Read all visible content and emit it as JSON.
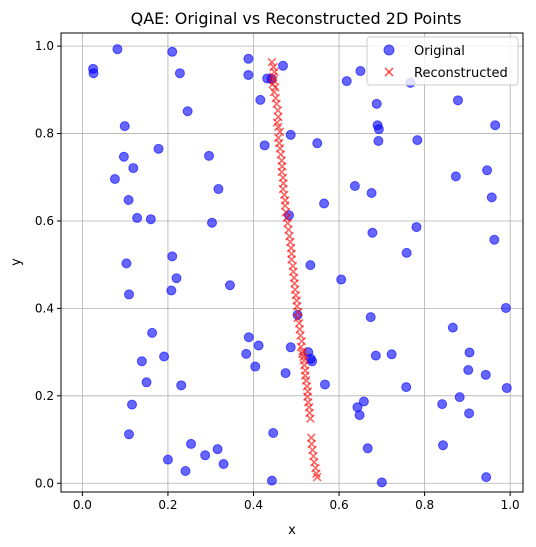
{
  "chart_data": {
    "type": "scatter",
    "title": "QAE: Original vs Reconstructed 2D Points",
    "xlabel": "x",
    "ylabel": "y",
    "xlim": [
      -0.05,
      1.03
    ],
    "ylim": [
      -0.02,
      1.03
    ],
    "x_ticks": [
      0.0,
      0.2,
      0.4,
      0.6,
      0.8,
      1.0
    ],
    "y_ticks": [
      0.0,
      0.2,
      0.4,
      0.6,
      0.8,
      1.0
    ],
    "x_tick_labels": [
      "0.0",
      "0.2",
      "0.4",
      "0.6",
      "0.8",
      "1.0"
    ],
    "y_tick_labels": [
      "0.0",
      "0.2",
      "0.4",
      "0.6",
      "0.8",
      "1.0"
    ],
    "grid": true,
    "legend": {
      "placement": "top-right"
    },
    "series": [
      {
        "name": "Original",
        "marker": "circle",
        "color": "#0000ff",
        "points": [
          [
            0.025,
            0.948
          ],
          [
            0.026,
            0.938
          ],
          [
            0.082,
            0.993
          ],
          [
            0.21,
            0.987
          ],
          [
            0.228,
            0.938
          ],
          [
            0.388,
            0.971
          ],
          [
            0.388,
            0.934
          ],
          [
            0.432,
            0.926
          ],
          [
            0.469,
            0.955
          ],
          [
            0.442,
            0.925
          ],
          [
            0.618,
            0.92
          ],
          [
            0.65,
            0.943
          ],
          [
            0.767,
            0.916
          ],
          [
            0.246,
            0.851
          ],
          [
            0.416,
            0.877
          ],
          [
            0.688,
            0.868
          ],
          [
            0.878,
            0.876
          ],
          [
            0.099,
            0.817
          ],
          [
            0.69,
            0.819
          ],
          [
            0.965,
            0.819
          ],
          [
            0.693,
            0.81
          ],
          [
            0.487,
            0.797
          ],
          [
            0.783,
            0.785
          ],
          [
            0.692,
            0.783
          ],
          [
            0.426,
            0.773
          ],
          [
            0.549,
            0.778
          ],
          [
            0.178,
            0.765
          ],
          [
            0.097,
            0.747
          ],
          [
            0.296,
            0.749
          ],
          [
            0.119,
            0.721
          ],
          [
            0.946,
            0.716
          ],
          [
            0.076,
            0.696
          ],
          [
            0.873,
            0.702
          ],
          [
            0.318,
            0.673
          ],
          [
            0.637,
            0.68
          ],
          [
            0.676,
            0.664
          ],
          [
            0.108,
            0.648
          ],
          [
            0.957,
            0.654
          ],
          [
            0.565,
            0.64
          ],
          [
            0.483,
            0.613
          ],
          [
            0.128,
            0.607
          ],
          [
            0.16,
            0.604
          ],
          [
            0.303,
            0.596
          ],
          [
            0.781,
            0.586
          ],
          [
            0.678,
            0.573
          ],
          [
            0.963,
            0.557
          ],
          [
            0.758,
            0.527
          ],
          [
            0.21,
            0.519
          ],
          [
            0.103,
            0.503
          ],
          [
            0.533,
            0.499
          ],
          [
            0.22,
            0.469
          ],
          [
            0.605,
            0.466
          ],
          [
            0.345,
            0.453
          ],
          [
            0.208,
            0.441
          ],
          [
            0.109,
            0.432
          ],
          [
            0.99,
            0.401
          ],
          [
            0.503,
            0.385
          ],
          [
            0.674,
            0.38
          ],
          [
            0.866,
            0.356
          ],
          [
            0.163,
            0.344
          ],
          [
            0.389,
            0.334
          ],
          [
            0.412,
            0.315
          ],
          [
            0.487,
            0.311
          ],
          [
            0.528,
            0.3
          ],
          [
            0.383,
            0.296
          ],
          [
            0.905,
            0.299
          ],
          [
            0.723,
            0.295
          ],
          [
            0.191,
            0.29
          ],
          [
            0.686,
            0.292
          ],
          [
            0.139,
            0.279
          ],
          [
            0.534,
            0.285
          ],
          [
            0.537,
            0.279
          ],
          [
            0.404,
            0.267
          ],
          [
            0.902,
            0.259
          ],
          [
            0.475,
            0.252
          ],
          [
            0.943,
            0.248
          ],
          [
            0.15,
            0.231
          ],
          [
            0.567,
            0.226
          ],
          [
            0.231,
            0.224
          ],
          [
            0.757,
            0.22
          ],
          [
            0.992,
            0.218
          ],
          [
            0.882,
            0.197
          ],
          [
            0.658,
            0.187
          ],
          [
            0.116,
            0.18
          ],
          [
            0.841,
            0.181
          ],
          [
            0.643,
            0.174
          ],
          [
            0.904,
            0.16
          ],
          [
            0.648,
            0.156
          ],
          [
            0.446,
            0.115
          ],
          [
            0.109,
            0.112
          ],
          [
            0.254,
            0.09
          ],
          [
            0.843,
            0.087
          ],
          [
            0.667,
            0.08
          ],
          [
            0.316,
            0.078
          ],
          [
            0.287,
            0.064
          ],
          [
            0.2,
            0.054
          ],
          [
            0.33,
            0.044
          ],
          [
            0.241,
            0.028
          ],
          [
            0.944,
            0.014
          ],
          [
            0.443,
            0.006
          ],
          [
            0.7,
            0.002
          ]
        ]
      },
      {
        "name": "Reconstructed",
        "marker": "x",
        "color": "#ff0000",
        "points": [
          [
            0.443,
            0.963
          ],
          [
            0.447,
            0.952
          ],
          [
            0.449,
            0.941
          ],
          [
            0.446,
            0.93
          ],
          [
            0.447,
            0.922
          ],
          [
            0.445,
            0.913
          ],
          [
            0.451,
            0.906
          ],
          [
            0.448,
            0.895
          ],
          [
            0.452,
            0.881
          ],
          [
            0.454,
            0.868
          ],
          [
            0.457,
            0.853
          ],
          [
            0.458,
            0.838
          ],
          [
            0.455,
            0.825
          ],
          [
            0.458,
            0.815
          ],
          [
            0.462,
            0.804
          ],
          [
            0.458,
            0.79
          ],
          [
            0.46,
            0.778
          ],
          [
            0.462,
            0.766
          ],
          [
            0.464,
            0.752
          ],
          [
            0.466,
            0.738
          ],
          [
            0.467,
            0.725
          ],
          [
            0.466,
            0.712
          ],
          [
            0.469,
            0.699
          ],
          [
            0.47,
            0.686
          ],
          [
            0.469,
            0.673
          ],
          [
            0.472,
            0.66
          ],
          [
            0.474,
            0.647
          ],
          [
            0.474,
            0.635
          ],
          [
            0.476,
            0.62
          ],
          [
            0.478,
            0.607
          ],
          [
            0.48,
            0.595
          ],
          [
            0.482,
            0.58
          ],
          [
            0.484,
            0.565
          ],
          [
            0.486,
            0.552
          ],
          [
            0.488,
            0.538
          ],
          [
            0.489,
            0.525
          ],
          [
            0.489,
            0.512
          ],
          [
            0.492,
            0.497
          ],
          [
            0.493,
            0.484
          ],
          [
            0.495,
            0.47
          ],
          [
            0.496,
            0.457
          ],
          [
            0.497,
            0.443
          ],
          [
            0.499,
            0.43
          ],
          [
            0.501,
            0.418
          ],
          [
            0.502,
            0.405
          ],
          [
            0.505,
            0.392
          ],
          [
            0.503,
            0.378
          ],
          [
            0.507,
            0.366
          ],
          [
            0.508,
            0.352
          ],
          [
            0.51,
            0.338
          ],
          [
            0.513,
            0.325
          ],
          [
            0.511,
            0.312
          ],
          [
            0.515,
            0.302
          ],
          [
            0.514,
            0.296
          ],
          [
            0.517,
            0.289
          ],
          [
            0.518,
            0.281
          ],
          [
            0.519,
            0.27
          ],
          [
            0.521,
            0.258
          ],
          [
            0.521,
            0.246
          ],
          [
            0.523,
            0.235
          ],
          [
            0.525,
            0.222
          ],
          [
            0.527,
            0.21
          ],
          [
            0.526,
            0.198
          ],
          [
            0.528,
            0.185
          ],
          [
            0.53,
            0.174
          ],
          [
            0.531,
            0.161
          ],
          [
            0.533,
            0.148
          ],
          [
            0.535,
            0.104
          ],
          [
            0.536,
            0.09
          ],
          [
            0.538,
            0.076
          ],
          [
            0.54,
            0.062
          ],
          [
            0.542,
            0.048
          ],
          [
            0.545,
            0.035
          ],
          [
            0.547,
            0.022
          ],
          [
            0.549,
            0.014
          ]
        ]
      }
    ]
  },
  "colors": {
    "grid": "#b0b0b0",
    "axes": "#000000",
    "legend_border": "#cccccc"
  }
}
